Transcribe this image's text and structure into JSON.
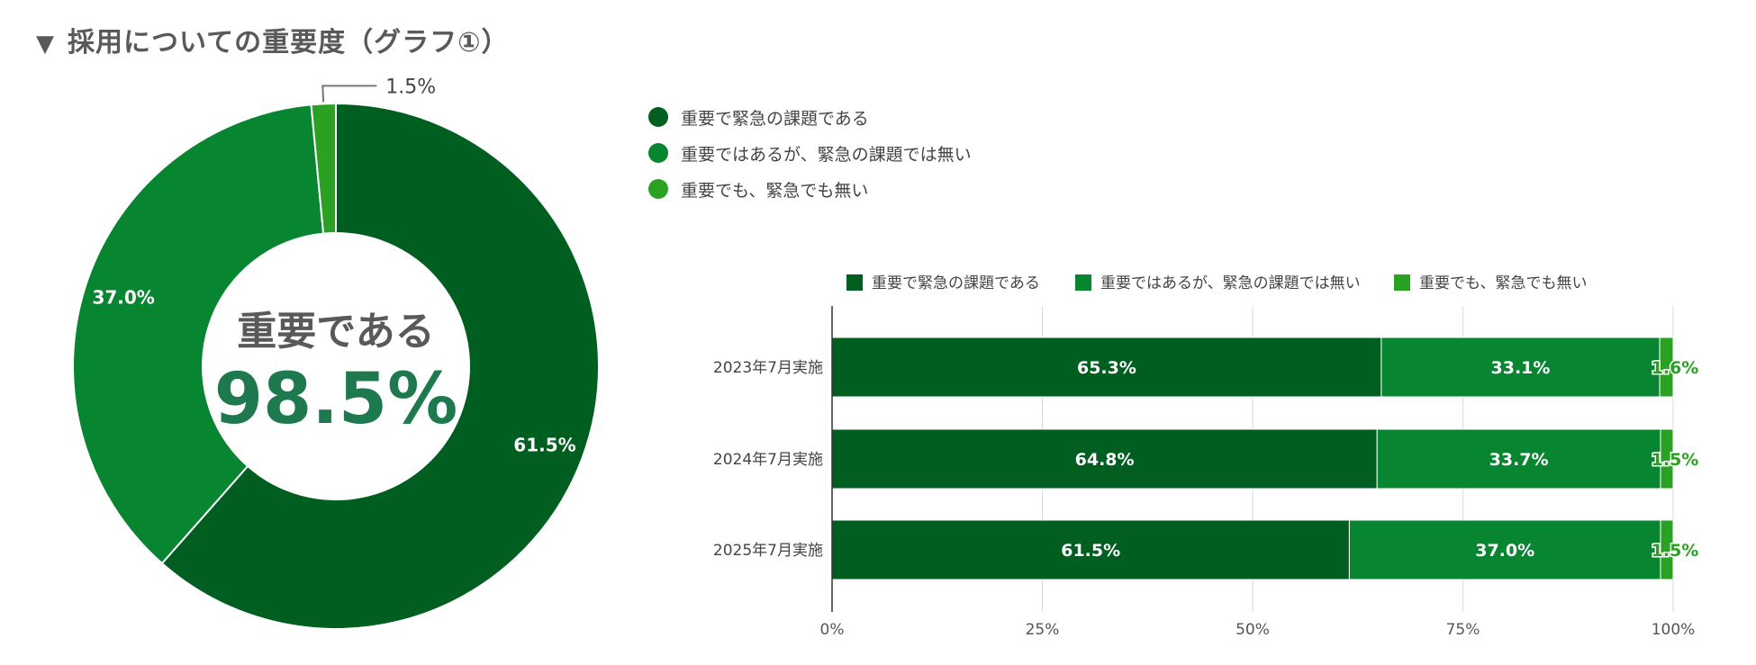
{
  "title": "採用についての重要度（グラフ①）",
  "title_marker": "▼",
  "categories": [
    "重要で緊急の課題である",
    "重要ではあるが、緊急の課題では無い",
    "重要でも、緊急でも無い"
  ],
  "colors": [
    "#005e20",
    "#088530",
    "#2aa122"
  ],
  "chart_data": [
    {
      "type": "pie",
      "variant": "donut",
      "labels": [
        "重要で緊急の課題である",
        "重要ではあるが、緊急の課題では無い",
        "重要でも、緊急でも無い"
      ],
      "values": [
        61.5,
        37.0,
        1.5
      ],
      "value_labels": [
        "61.5%",
        "37.0%",
        "1.5%"
      ],
      "center_label": "重要である",
      "center_value": "98.5%",
      "legend_position": "right"
    },
    {
      "type": "bar",
      "orientation": "horizontal",
      "stacked": true,
      "categories": [
        "2023年7月実施",
        "2024年7月実施",
        "2025年7月実施"
      ],
      "series": [
        {
          "name": "重要で緊急の課題である",
          "values": [
            65.3,
            64.8,
            61.5
          ],
          "labels": [
            "65.3%",
            "64.8%",
            "61.5%"
          ]
        },
        {
          "name": "重要ではあるが、緊急の課題では無い",
          "values": [
            33.1,
            33.7,
            37.0
          ],
          "labels": [
            "33.1%",
            "33.7%",
            "37.0%"
          ]
        },
        {
          "name": "重要でも、緊急でも無い",
          "values": [
            1.6,
            1.5,
            1.5
          ],
          "labels": [
            "1.6%",
            "1.5%",
            "1.5%"
          ]
        }
      ],
      "xlim": [
        0,
        100
      ],
      "xticks": [
        "0%",
        "25%",
        "50%",
        "75%",
        "100%"
      ],
      "grid": true,
      "legend_position": "top"
    }
  ]
}
